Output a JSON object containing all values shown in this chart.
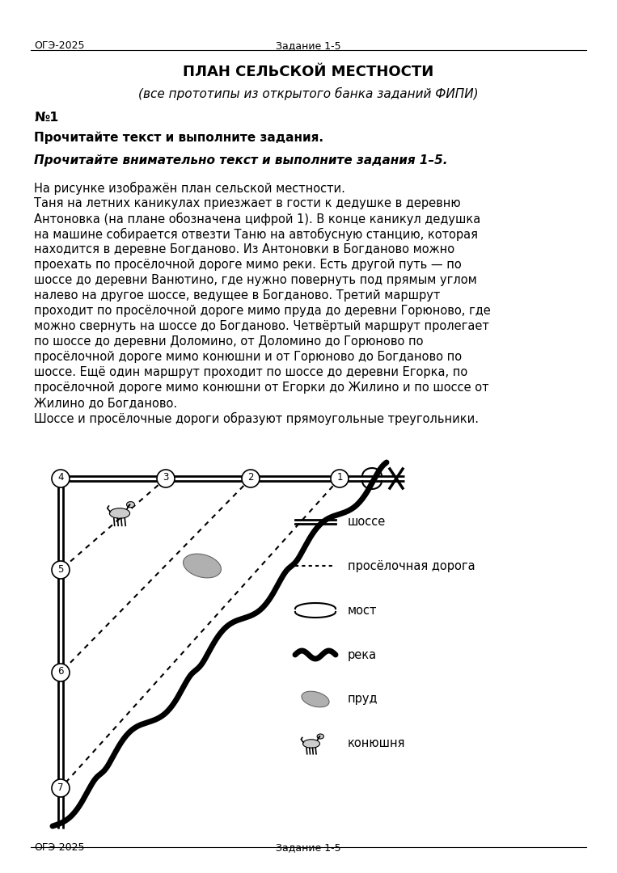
{
  "header_left": "ОГЭ-2025",
  "header_center": "Задание 1-5",
  "footer_left": "ОГЭ-2025",
  "footer_center": "Задание 1-5",
  "title": "ПЛАН СЕЛЬСКОЙ МЕСТНОСТИ",
  "subtitle": "(все прототипы из открытого банка заданий ФИПИ)",
  "number": "№1",
  "bold_text1": "Прочитайте текст и выполните задания.",
  "italic_bold_text": "Прочитайте внимательно текст и выполните задания 1–5.",
  "para_lines": [
    "На рисунке изображён план сельской местности.",
    "Таня на летних каникулах приезжает в гости к дедушке в деревню",
    "Антоновка (на плане обозначена цифрой 1). В конце каникул дедушка",
    "на машине собирается отвезти Таню на автобусную станцию, которая",
    "находится в деревне Богданово. Из Антоновки в Богданово можно",
    "проехать по просёлочной дороге мимо реки. Есть другой путь — по",
    "шоссе до деревни Ванютино, где нужно повернуть под прямым углом",
    "налево на другое шоссе, ведущее в Богданово. Третий маршрут",
    "проходит по просёлочной дороге мимо пруда до деревни Горюново, где",
    "можно свернуть на шоссе до Богданово. Четвёртый маршрут пролегает",
    "по шоссе до деревни Доломино, от Доломино до Горюново по",
    "просёлочной дороге мимо конюшни и от Горюново до Богданово по",
    "шоссе. Ещё один маршрут проходит по шоссе до деревни Егорка, по",
    "просёлочной дороге мимо конюшни от Егорки до Жилино и по шоссе от",
    "Жилино до Богданово.",
    "Шоссе и просёлочные дороги образуют прямоугольные треугольники."
  ],
  "legend_labels": [
    "шоссе",
    "просёлочная дорога",
    "мост",
    "река",
    "пруд",
    "конюшня"
  ],
  "bg_color": "#ffffff",
  "text_color": "#000000"
}
